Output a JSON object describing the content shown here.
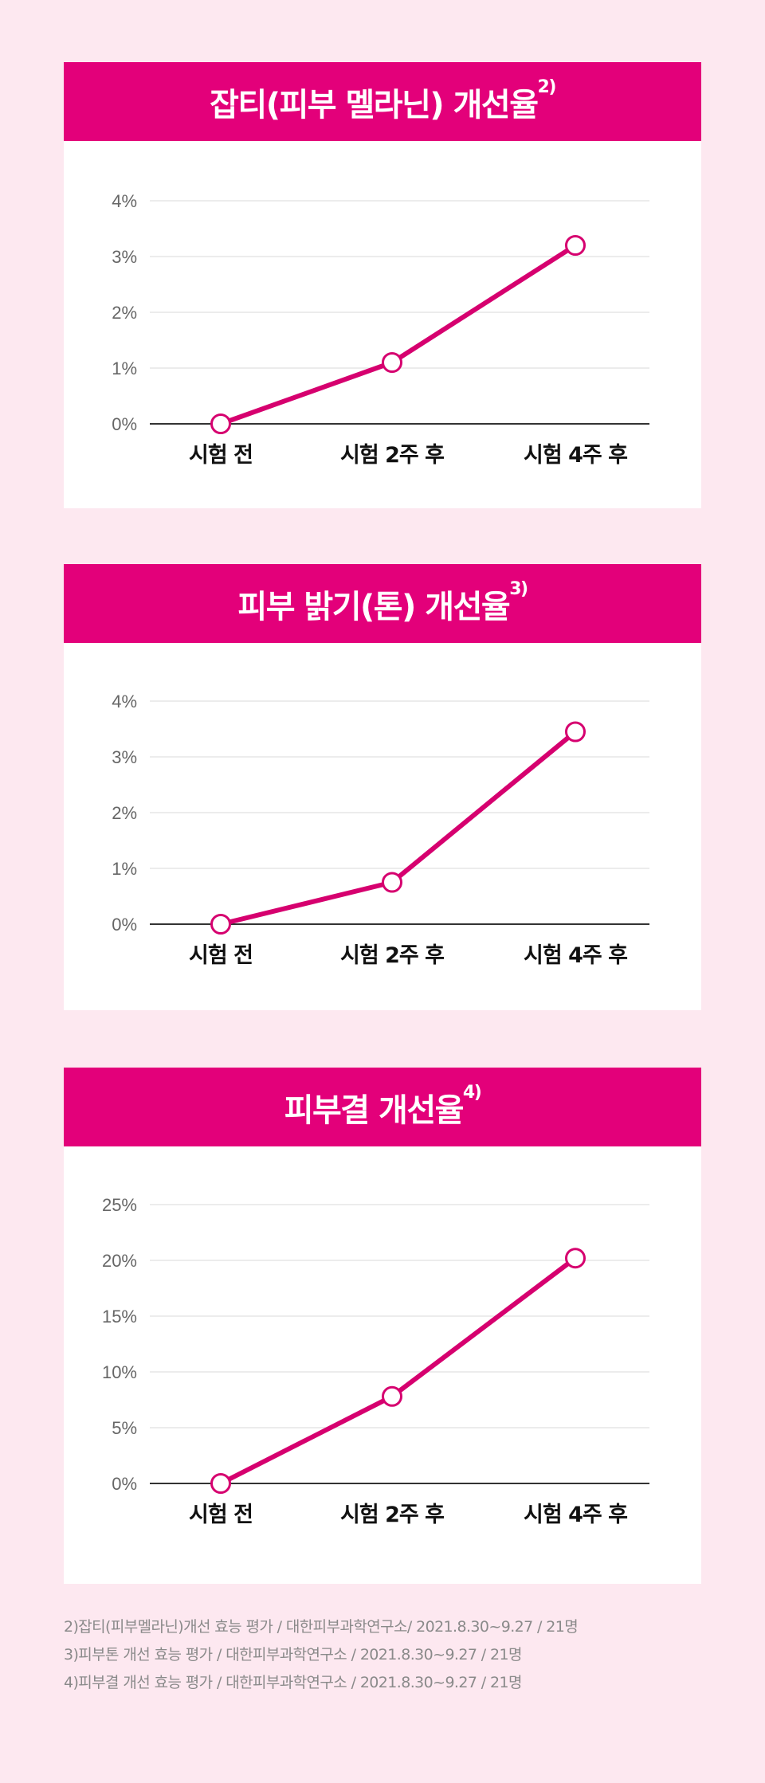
{
  "colors": {
    "accent": "#e3007a",
    "line": "#d6006f",
    "background": "#fde8f0",
    "grid": "#e6e6e6",
    "axis": "#333333"
  },
  "chart_data": [
    {
      "type": "line",
      "title": "잡티(피부 멜라닌) 개선율",
      "title_note": "2)",
      "categories": [
        "시험 전",
        "시험 2주 후",
        "시험 4주 후"
      ],
      "values": [
        0,
        1.1,
        3.2
      ],
      "ylim": [
        0,
        4
      ],
      "yticks": [
        0,
        1,
        2,
        3,
        4
      ],
      "ytick_labels": [
        "0%",
        "1%",
        "2%",
        "3%",
        "4%"
      ],
      "grid": true,
      "markers": "hollow-circle"
    },
    {
      "type": "line",
      "title": "피부 밝기(톤) 개선율",
      "title_note": "3)",
      "categories": [
        "시험 전",
        "시험 2주 후",
        "시험 4주 후"
      ],
      "values": [
        0,
        0.75,
        3.45
      ],
      "ylim": [
        0,
        4
      ],
      "yticks": [
        0,
        1,
        2,
        3,
        4
      ],
      "ytick_labels": [
        "0%",
        "1%",
        "2%",
        "3%",
        "4%"
      ],
      "grid": true,
      "markers": "hollow-circle"
    },
    {
      "type": "line",
      "title": "피부결 개선율",
      "title_note": "4)",
      "categories": [
        "시험 전",
        "시험 2주 후",
        "시험 4주 후"
      ],
      "values": [
        0,
        7.8,
        20.2
      ],
      "ylim": [
        0,
        25
      ],
      "yticks": [
        0,
        5,
        10,
        15,
        20,
        25
      ],
      "ytick_labels": [
        "0%",
        "5%",
        "10%",
        "15%",
        "20%",
        "25%"
      ],
      "grid": true,
      "markers": "hollow-circle"
    }
  ],
  "footnotes": [
    "2)잡티(피부멜라닌)개선 효능 평가 / 대한피부과학연구소/ 2021.8.30~9.27 / 21명",
    "3)피부톤 개선 효능 평가 / 대한피부과학연구소 / 2021.8.30~9.27 / 21명",
    "4)피부결 개선 효능 평가 / 대한피부과학연구소 / 2021.8.30~9.27 / 21명"
  ]
}
